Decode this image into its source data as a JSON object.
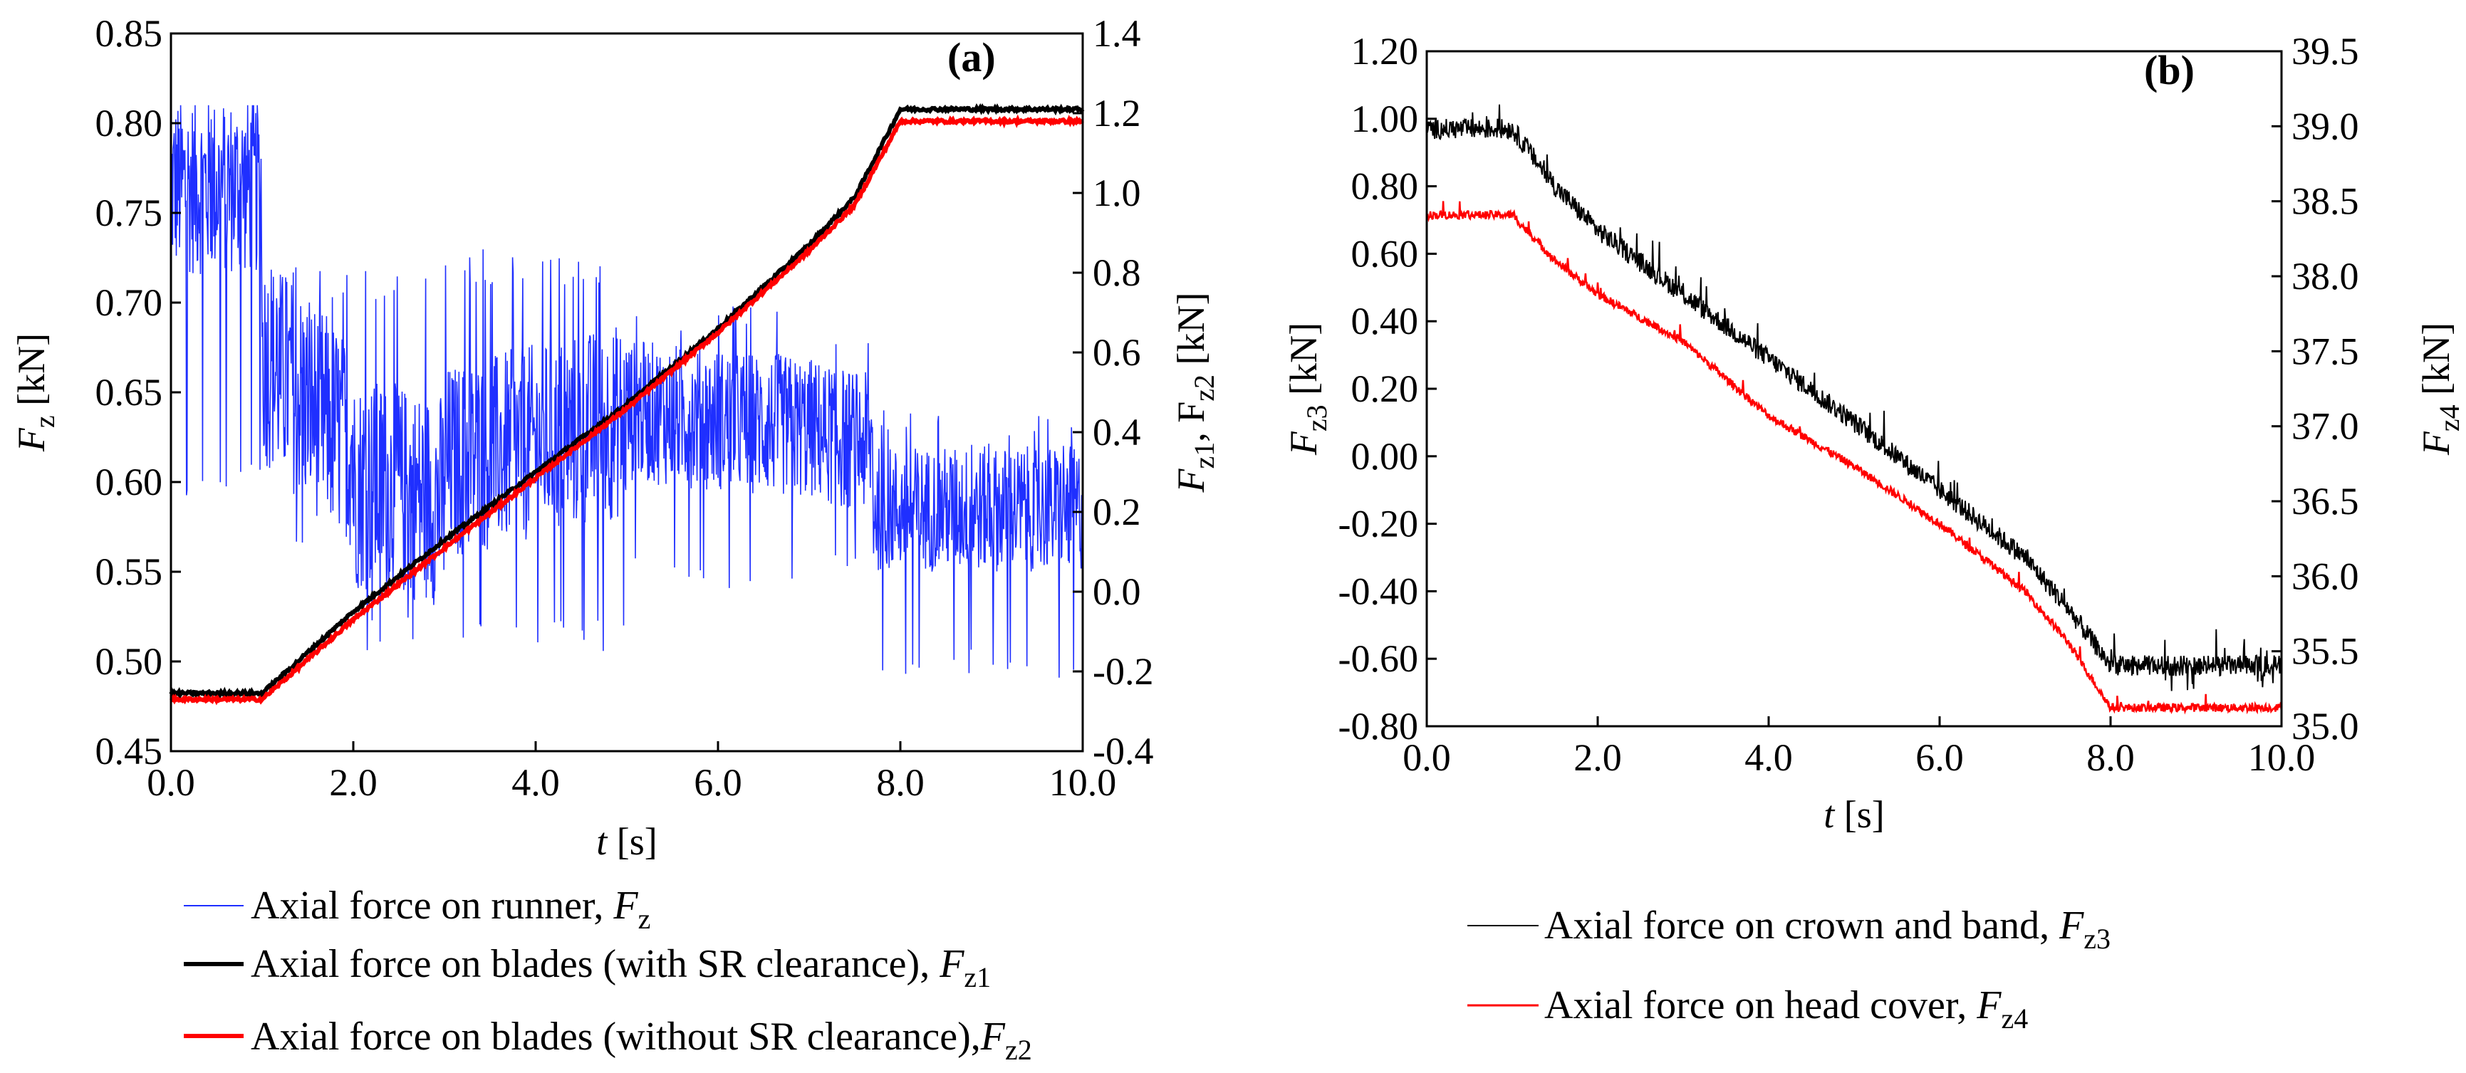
{
  "chart_data": [
    {
      "panel_label": "(a)",
      "type": "line",
      "xlabel_italic": "t",
      "xlabel_unit": "[s]",
      "xlim": [
        0,
        10
      ],
      "x_ticks": [
        "0.0",
        "2.0",
        "4.0",
        "6.0",
        "8.0",
        "10.0"
      ],
      "y_left": {
        "label_main": "F",
        "label_sub": "z",
        "label_unit": "[kN]",
        "lim": [
          0.45,
          0.85
        ],
        "ticks": [
          "0.45",
          "0.50",
          "0.55",
          "0.60",
          "0.65",
          "0.70",
          "0.75",
          "0.80",
          "0.85"
        ]
      },
      "y_right": {
        "label_main": "F",
        "label_sub1": "z1",
        "label_sep": ", F",
        "label_sub2": "z2",
        "label_unit": "[kN]",
        "lim": [
          -0.4,
          1.4
        ],
        "ticks": [
          "-0.4",
          "-0.2",
          "0.0",
          "0.2",
          "0.4",
          "0.6",
          "0.8",
          "1.0",
          "1.2",
          "1.4"
        ]
      },
      "series": [
        {
          "name": "Axial force on runner",
          "symbol": "F",
          "symbol_sub": "z",
          "axis": "left",
          "color": "#1f2fff",
          "noisy": true,
          "segments": [
            {
              "x": [
                0.0,
                1.0
              ],
              "mean": [
                0.765,
                0.765
              ],
              "amp": 0.05,
              "min": 0.59,
              "max": 0.81
            },
            {
              "x": [
                1.0,
                2.0
              ],
              "mean": [
                0.67,
                0.62
              ],
              "amp": 0.06,
              "min": 0.56,
              "max": 0.72
            },
            {
              "x": [
                2.0,
                3.0
              ],
              "mean": [
                0.6,
                0.59
              ],
              "amp": 0.06,
              "min": 0.505,
              "max": 0.72
            },
            {
              "x": [
                3.0,
                5.0
              ],
              "mean": [
                0.61,
                0.635
              ],
              "amp": 0.055,
              "min": 0.505,
              "max": 0.73
            },
            {
              "x": [
                5.0,
                7.0
              ],
              "mean": [
                0.64,
                0.63
              ],
              "amp": 0.04,
              "min": 0.54,
              "max": 0.7
            },
            {
              "x": [
                7.0,
                7.7
              ],
              "mean": [
                0.63,
                0.62
              ],
              "amp": 0.04,
              "min": 0.54,
              "max": 0.68
            },
            {
              "x": [
                7.7,
                10.0
              ],
              "mean": [
                0.585,
                0.585
              ],
              "amp": 0.035,
              "min": 0.49,
              "max": 0.64
            }
          ]
        },
        {
          "name": "Axial force on blades (with SR clearance)",
          "symbol": "F",
          "symbol_sub": "z1",
          "axis": "right",
          "color": "#000000",
          "x": [
            0.0,
            1.0,
            2.0,
            3.0,
            4.0,
            5.0,
            6.0,
            7.0,
            7.5,
            8.0,
            10.0
          ],
          "y": [
            -0.255,
            -0.255,
            -0.05,
            0.13,
            0.3,
            0.47,
            0.66,
            0.87,
            0.99,
            1.21,
            1.21
          ]
        },
        {
          "name": "Axial force on blades (without SR clearance)",
          "symbol": "F",
          "symbol_sub": "z2",
          "axis": "right",
          "color": "#ff0000",
          "x": [
            0.0,
            1.0,
            2.0,
            3.0,
            4.0,
            5.0,
            6.0,
            7.0,
            7.5,
            8.0,
            10.0
          ],
          "y": [
            -0.27,
            -0.27,
            -0.07,
            0.11,
            0.285,
            0.46,
            0.65,
            0.855,
            0.97,
            1.18,
            1.18
          ]
        }
      ]
    },
    {
      "panel_label": "(b)",
      "type": "line",
      "xlabel_italic": "t",
      "xlabel_unit": "[s]",
      "xlim": [
        0,
        10
      ],
      "x_ticks": [
        "0.0",
        "2.0",
        "4.0",
        "6.0",
        "8.0",
        "10.0"
      ],
      "y_left": {
        "label_main": "F",
        "label_sub": "z3",
        "label_unit": "[kN]",
        "lim": [
          -0.8,
          1.2
        ],
        "ticks": [
          "-0.80",
          "-0.60",
          "-0.40",
          "-0.20",
          "0.00",
          "0.20",
          "0.40",
          "0.60",
          "0.80",
          "1.00",
          "1.20"
        ]
      },
      "y_right": {
        "label_main": "F",
        "label_sub": "z4",
        "label_unit": "[kN]",
        "lim": [
          35.0,
          39.5
        ],
        "ticks": [
          "35.0",
          "35.5",
          "36.0",
          "36.5",
          "37.0",
          "37.5",
          "38.0",
          "38.5",
          "39.0",
          "39.5"
        ]
      },
      "series": [
        {
          "name": "Axial force on crown and band",
          "symbol": "F",
          "symbol_sub": "z3",
          "axis": "left",
          "color": "#000000",
          "noisy": true,
          "x": [
            0.0,
            1.0,
            1.5,
            2.0,
            3.0,
            4.0,
            5.0,
            6.0,
            7.0,
            7.5,
            8.0,
            10.0
          ],
          "y": [
            0.97,
            0.97,
            0.8,
            0.67,
            0.48,
            0.29,
            0.1,
            -0.1,
            -0.3,
            -0.45,
            -0.62,
            -0.62
          ],
          "amp": 0.03
        },
        {
          "name": "Axial force on head cover",
          "symbol": "F",
          "symbol_sub": "z4",
          "axis": "left",
          "color": "#ff0000",
          "noisy": true,
          "x": [
            0.0,
            1.0,
            1.5,
            2.0,
            3.0,
            4.0,
            5.0,
            6.0,
            7.0,
            7.5,
            8.0,
            10.0
          ],
          "y": [
            0.715,
            0.715,
            0.58,
            0.48,
            0.34,
            0.12,
            -0.03,
            -0.2,
            -0.4,
            -0.55,
            -0.745,
            -0.745
          ],
          "amp": 0.012
        }
      ]
    }
  ]
}
